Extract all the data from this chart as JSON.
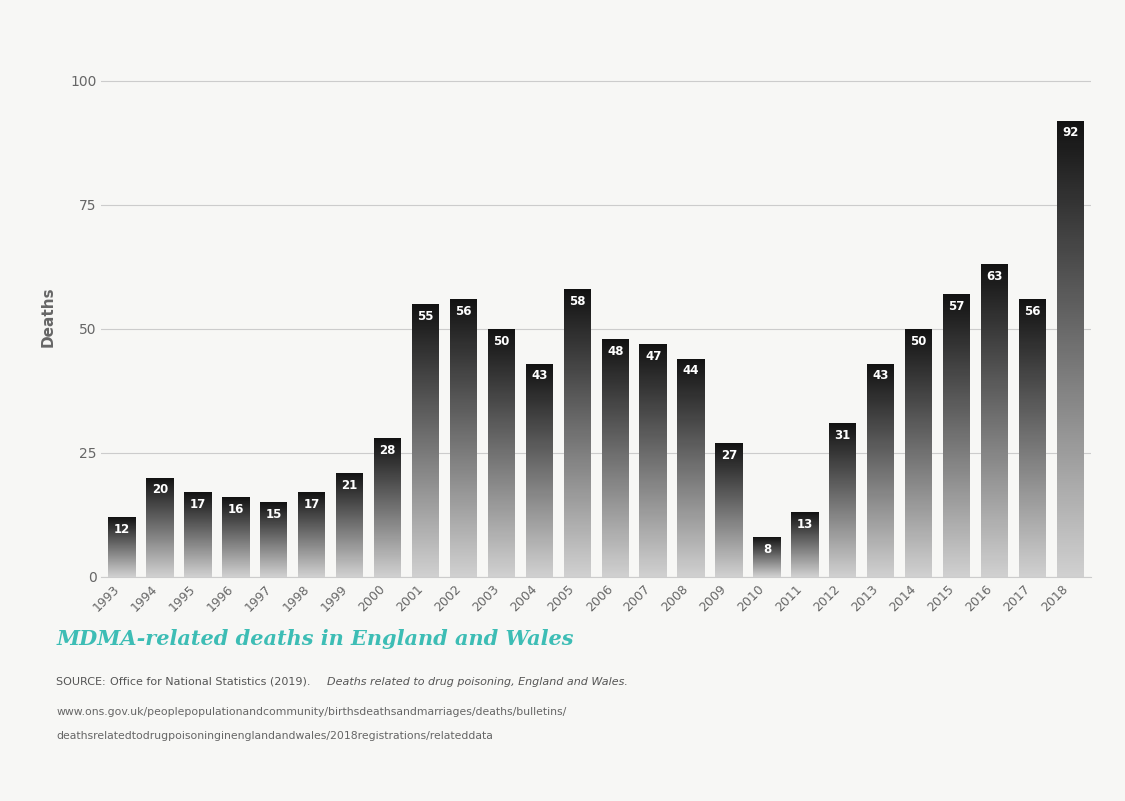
{
  "years": [
    1993,
    1994,
    1995,
    1996,
    1997,
    1998,
    1999,
    2000,
    2001,
    2002,
    2003,
    2004,
    2005,
    2006,
    2007,
    2008,
    2009,
    2010,
    2011,
    2012,
    2013,
    2014,
    2015,
    2016,
    2017,
    2018
  ],
  "values": [
    12,
    20,
    17,
    16,
    15,
    17,
    21,
    28,
    55,
    56,
    50,
    43,
    58,
    48,
    47,
    44,
    27,
    8,
    13,
    31,
    43,
    50,
    57,
    63,
    56,
    92
  ],
  "background_color": "#f7f7f5",
  "bar_top_color": "#111111",
  "bar_bottom_color": "#d0d0d0",
  "label_color": "#ffffff",
  "axis_label_color": "#666666",
  "grid_color": "#cccccc",
  "title_text": "MDMA-related deaths in England and Wales",
  "title_color": "#3dbdb5",
  "separator_color": "#3dbdb5",
  "source_prefix": "SOURCE: ",
  "source_main": "Office for National Statistics (2019). ",
  "source_italic": "Deaths related to drug poisoning, England and Wales.",
  "url_line1": "www.ons.gov.uk/peoplepopulationandcommunity/birthsdeathsandmarriages/deaths/bulletins/",
  "url_line2": "deathsrelatedtodrugpoisoninginenglandandwales/2018registrations/relateddata",
  "ylabel": "Deaths",
  "yticks": [
    0,
    25,
    50,
    75,
    100
  ],
  "ylim": [
    0,
    105
  ],
  "figsize": [
    11.25,
    8.01
  ],
  "dpi": 100
}
